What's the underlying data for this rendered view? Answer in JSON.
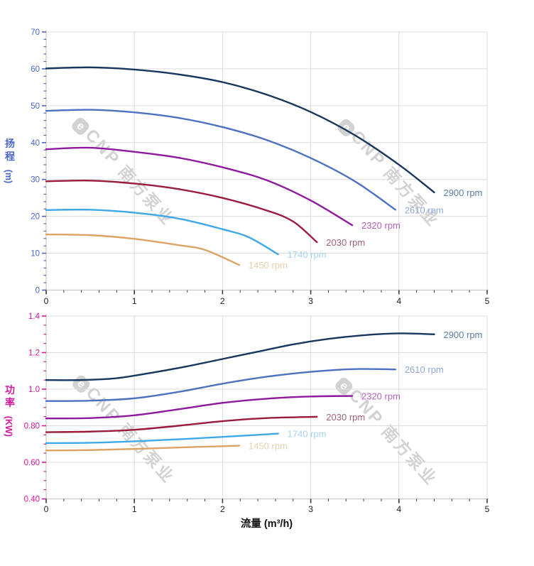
{
  "watermark": {
    "logo_letter": "e",
    "brand": "CNP",
    "brand_cn": "南方泵业"
  },
  "chart_data": [
    {
      "type": "line",
      "title": "",
      "xlabel": "流量 (m³/h)",
      "ylabel": "扬程",
      "ylabel_unit": "(m)",
      "axis_color": "#4a66cc",
      "x_label_color": "#1a1a1a",
      "xlim": [
        0,
        5
      ],
      "ylim": [
        0,
        70
      ],
      "x_ticks": [
        0,
        1,
        2,
        3,
        4,
        5
      ],
      "x_tick_labels": [
        "0",
        "1",
        "2",
        "3",
        "4",
        "5"
      ],
      "x_minor_step": 0.2,
      "y_ticks": [
        0,
        10,
        20,
        30,
        40,
        50,
        60,
        70
      ],
      "y_tick_labels": [
        "0",
        "10",
        "20",
        "30",
        "40",
        "50",
        "60",
        "70"
      ],
      "y_minor_step": 2,
      "grid": true,
      "legend_position": "end-of-line",
      "series": [
        {
          "name": "2900 rpm",
          "label": "2900 rpm",
          "color": "#17375e",
          "label_color": "#5f7ca3",
          "points": [
            [
              0,
              60.1
            ],
            [
              0.5,
              60.4
            ],
            [
              1,
              59.8
            ],
            [
              1.5,
              58.5
            ],
            [
              2,
              56.4
            ],
            [
              2.5,
              53.0
            ],
            [
              3,
              48.3
            ],
            [
              3.5,
              42.0
            ],
            [
              4,
              34.0
            ],
            [
              4.4,
              26.5
            ]
          ]
        },
        {
          "name": "2610 rpm",
          "label": "2610 rpm",
          "color": "#4d71c0",
          "label_color": "#90a8d8",
          "points": [
            [
              0,
              48.6
            ],
            [
              0.5,
              48.9
            ],
            [
              1,
              48.2
            ],
            [
              1.5,
              46.7
            ],
            [
              2,
              44.2
            ],
            [
              2.5,
              40.7
            ],
            [
              3,
              35.8
            ],
            [
              3.5,
              29.5
            ],
            [
              3.96,
              21.8
            ]
          ]
        },
        {
          "name": "2320 rpm",
          "label": "2320 rpm",
          "color": "#8e189e",
          "label_color": "#b362c2",
          "points": [
            [
              0,
              38.2
            ],
            [
              0.5,
              38.6
            ],
            [
              1,
              37.5
            ],
            [
              1.5,
              35.9
            ],
            [
              2,
              33.3
            ],
            [
              2.5,
              29.8
            ],
            [
              3,
              24.3
            ],
            [
              3.47,
              17.6
            ]
          ]
        },
        {
          "name": "2030 rpm",
          "label": "2030 rpm",
          "color": "#9b1b3c",
          "label_color": "#a5617a",
          "points": [
            [
              0,
              29.5
            ],
            [
              0.5,
              29.7
            ],
            [
              1,
              28.9
            ],
            [
              1.5,
              27.4
            ],
            [
              2,
              25.0
            ],
            [
              2.5,
              21.6
            ],
            [
              2.8,
              18.6
            ],
            [
              3.07,
              13.0
            ]
          ]
        },
        {
          "name": "1740 rpm",
          "label": "1740 rpm",
          "color": "#3fa8e8",
          "label_color": "#a6d3f2",
          "points": [
            [
              0,
              21.7
            ],
            [
              0.5,
              21.8
            ],
            [
              1,
              21.0
            ],
            [
              1.5,
              19.4
            ],
            [
              2,
              16.5
            ],
            [
              2.3,
              14.3
            ],
            [
              2.63,
              9.7
            ]
          ]
        },
        {
          "name": "1450 rpm",
          "label": "1450 rpm",
          "color": "#dca266",
          "label_color": "#e9d0ac",
          "points": [
            [
              0,
              15.1
            ],
            [
              0.5,
              14.9
            ],
            [
              1,
              13.9
            ],
            [
              1.5,
              12.2
            ],
            [
              1.8,
              10.9
            ],
            [
              2.19,
              6.8
            ]
          ]
        }
      ]
    },
    {
      "type": "line",
      "title": "",
      "xlabel": "流量 (m³/h)",
      "ylabel": "功率",
      "ylabel_unit": "(KW)",
      "axis_color": "#d6169b",
      "x_label_color": "#1a1a1a",
      "xlim": [
        0,
        5
      ],
      "ylim": [
        0.4,
        1.4
      ],
      "x_ticks": [
        0,
        1,
        2,
        3,
        4,
        5
      ],
      "x_tick_labels": [
        "0",
        "1",
        "2",
        "3",
        "4",
        "5"
      ],
      "x_minor_step": 0.2,
      "y_ticks": [
        0.4,
        0.6,
        0.8,
        1.0,
        1.2,
        1.4
      ],
      "y_tick_labels": [
        "0.40",
        "0.60",
        "0.80",
        "1.0",
        "1.2",
        "1.4"
      ],
      "y_minor_step": 0.05,
      "grid": true,
      "legend_position": "end-of-line",
      "series": [
        {
          "name": "2900 rpm",
          "label": "2900 rpm",
          "color": "#17375e",
          "label_color": "#5f7ca3",
          "points": [
            [
              0,
              1.05
            ],
            [
              0.4,
              1.05
            ],
            [
              0.8,
              1.06
            ],
            [
              1.2,
              1.09
            ],
            [
              1.6,
              1.125
            ],
            [
              2,
              1.165
            ],
            [
              2.4,
              1.205
            ],
            [
              2.8,
              1.245
            ],
            [
              3.2,
              1.275
            ],
            [
              3.6,
              1.295
            ],
            [
              4,
              1.305
            ],
            [
              4.4,
              1.3
            ]
          ]
        },
        {
          "name": "2610 rpm",
          "label": "2610 rpm",
          "color": "#4d71c0",
          "label_color": "#90a8d8",
          "points": [
            [
              0,
              0.935
            ],
            [
              0.5,
              0.937
            ],
            [
              1,
              0.95
            ],
            [
              1.5,
              0.985
            ],
            [
              2,
              1.03
            ],
            [
              2.5,
              1.068
            ],
            [
              3,
              1.095
            ],
            [
              3.5,
              1.11
            ],
            [
              3.96,
              1.108
            ]
          ]
        },
        {
          "name": "2320 rpm",
          "label": "2320 rpm",
          "color": "#8e189e",
          "label_color": "#b362c2",
          "points": [
            [
              0,
              0.84
            ],
            [
              0.5,
              0.842
            ],
            [
              1,
              0.857
            ],
            [
              1.5,
              0.89
            ],
            [
              2,
              0.925
            ],
            [
              2.5,
              0.948
            ],
            [
              3,
              0.96
            ],
            [
              3.47,
              0.963
            ]
          ]
        },
        {
          "name": "2030 rpm",
          "label": "2030 rpm",
          "color": "#9b1b3c",
          "label_color": "#a5617a",
          "points": [
            [
              0,
              0.765
            ],
            [
              0.5,
              0.768
            ],
            [
              1,
              0.778
            ],
            [
              1.5,
              0.8
            ],
            [
              2,
              0.825
            ],
            [
              2.5,
              0.842
            ],
            [
              3.07,
              0.849
            ]
          ]
        },
        {
          "name": "1740 rpm",
          "label": "1740 rpm",
          "color": "#3fa8e8",
          "label_color": "#a6d3f2",
          "points": [
            [
              0,
              0.705
            ],
            [
              0.5,
              0.707
            ],
            [
              1,
              0.715
            ],
            [
              1.5,
              0.726
            ],
            [
              2,
              0.739
            ],
            [
              2.63,
              0.757
            ]
          ]
        },
        {
          "name": "1450 rpm",
          "label": "1450 rpm",
          "color": "#dca266",
          "label_color": "#e9d0ac",
          "points": [
            [
              0,
              0.665
            ],
            [
              0.5,
              0.667
            ],
            [
              1,
              0.673
            ],
            [
              1.5,
              0.681
            ],
            [
              2,
              0.688
            ],
            [
              2.19,
              0.691
            ]
          ]
        }
      ]
    }
  ],
  "style": {
    "grid_color": "#dcdcdc",
    "axis_line_color": "#c8c8c8",
    "x_tick_color": "#3a3a3a"
  }
}
